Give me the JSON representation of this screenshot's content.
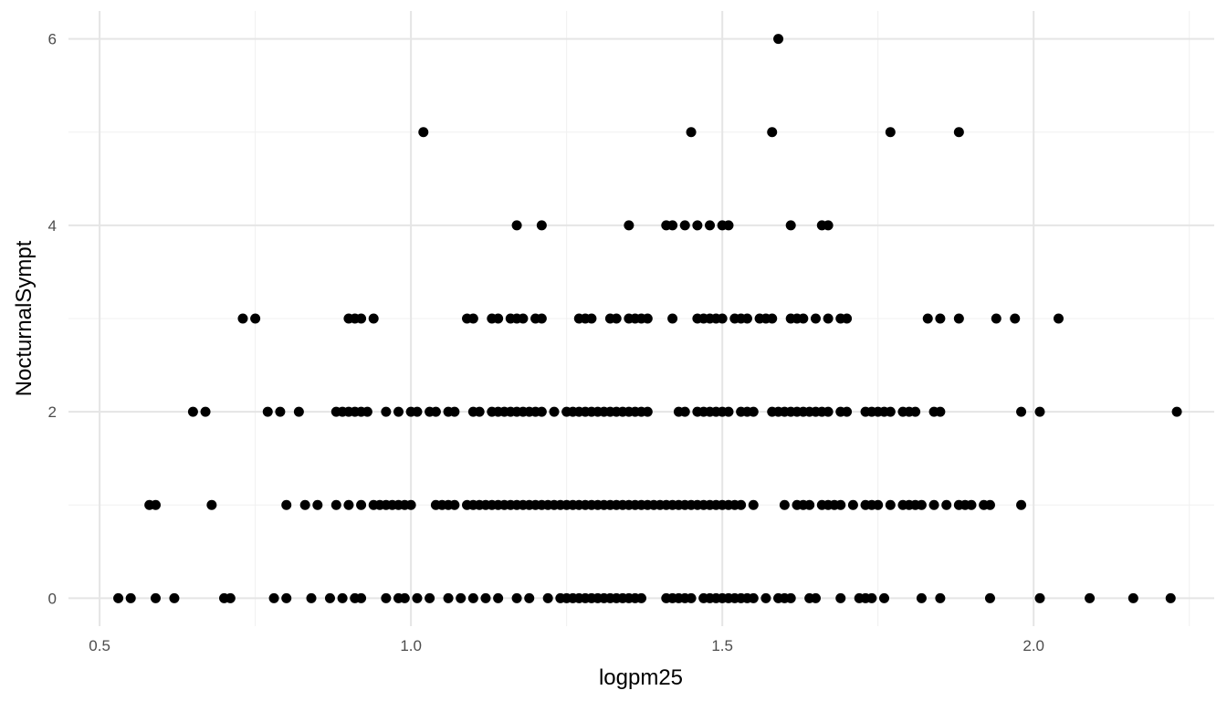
{
  "chart_data": {
    "type": "scatter",
    "title": "",
    "xlabel": "logpm25",
    "ylabel": "NocturnalSympt",
    "xlim": [
      0.45,
      2.29
    ],
    "ylim": [
      -0.3,
      6.3
    ],
    "x_ticks": [
      0.5,
      1.0,
      1.5,
      2.0
    ],
    "x_tick_labels": [
      "0.5",
      "1.0",
      "1.5",
      "2.0"
    ],
    "x_minor_ticks": [
      0.75,
      1.25,
      1.75,
      2.25
    ],
    "y_ticks": [
      0,
      2,
      4,
      6
    ],
    "y_tick_labels": [
      "0",
      "2",
      "4",
      "6"
    ],
    "y_minor_ticks": [
      1,
      3,
      5
    ],
    "grid": true,
    "point_color": "#000000",
    "grid_major_color": "#e5e5e5",
    "grid_minor_color": "#f0f0f0",
    "series": [
      {
        "points": [
          [
            1.59,
            6
          ],
          [
            1.02,
            5
          ],
          [
            1.45,
            5
          ],
          [
            1.58,
            5
          ],
          [
            1.77,
            5
          ],
          [
            1.88,
            5
          ],
          [
            1.17,
            4
          ],
          [
            1.21,
            4
          ],
          [
            1.35,
            4
          ],
          [
            1.41,
            4
          ],
          [
            1.42,
            4
          ],
          [
            1.44,
            4
          ],
          [
            1.46,
            4
          ],
          [
            1.48,
            4
          ],
          [
            1.5,
            4
          ],
          [
            1.51,
            4
          ],
          [
            1.61,
            4
          ],
          [
            1.66,
            4
          ],
          [
            1.67,
            4
          ],
          [
            0.73,
            3
          ],
          [
            0.75,
            3
          ],
          [
            0.9,
            3
          ],
          [
            0.91,
            3
          ],
          [
            0.92,
            3
          ],
          [
            0.94,
            3
          ],
          [
            1.09,
            3
          ],
          [
            1.1,
            3
          ],
          [
            1.13,
            3
          ],
          [
            1.14,
            3
          ],
          [
            1.16,
            3
          ],
          [
            1.17,
            3
          ],
          [
            1.18,
            3
          ],
          [
            1.2,
            3
          ],
          [
            1.21,
            3
          ],
          [
            1.27,
            3
          ],
          [
            1.28,
            3
          ],
          [
            1.29,
            3
          ],
          [
            1.32,
            3
          ],
          [
            1.33,
            3
          ],
          [
            1.35,
            3
          ],
          [
            1.36,
            3
          ],
          [
            1.37,
            3
          ],
          [
            1.38,
            3
          ],
          [
            1.42,
            3
          ],
          [
            1.46,
            3
          ],
          [
            1.47,
            3
          ],
          [
            1.48,
            3
          ],
          [
            1.49,
            3
          ],
          [
            1.5,
            3
          ],
          [
            1.52,
            3
          ],
          [
            1.53,
            3
          ],
          [
            1.54,
            3
          ],
          [
            1.56,
            3
          ],
          [
            1.57,
            3
          ],
          [
            1.58,
            3
          ],
          [
            1.61,
            3
          ],
          [
            1.62,
            3
          ],
          [
            1.63,
            3
          ],
          [
            1.65,
            3
          ],
          [
            1.67,
            3
          ],
          [
            1.69,
            3
          ],
          [
            1.7,
            3
          ],
          [
            1.83,
            3
          ],
          [
            1.85,
            3
          ],
          [
            1.88,
            3
          ],
          [
            1.94,
            3
          ],
          [
            1.97,
            3
          ],
          [
            2.04,
            3
          ],
          [
            0.65,
            2
          ],
          [
            0.67,
            2
          ],
          [
            0.77,
            2
          ],
          [
            0.79,
            2
          ],
          [
            0.82,
            2
          ],
          [
            0.88,
            2
          ],
          [
            0.89,
            2
          ],
          [
            0.9,
            2
          ],
          [
            0.91,
            2
          ],
          [
            0.92,
            2
          ],
          [
            0.93,
            2
          ],
          [
            0.96,
            2
          ],
          [
            0.98,
            2
          ],
          [
            1.0,
            2
          ],
          [
            1.01,
            2
          ],
          [
            1.03,
            2
          ],
          [
            1.04,
            2
          ],
          [
            1.06,
            2
          ],
          [
            1.07,
            2
          ],
          [
            1.1,
            2
          ],
          [
            1.11,
            2
          ],
          [
            1.13,
            2
          ],
          [
            1.14,
            2
          ],
          [
            1.15,
            2
          ],
          [
            1.16,
            2
          ],
          [
            1.17,
            2
          ],
          [
            1.18,
            2
          ],
          [
            1.19,
            2
          ],
          [
            1.2,
            2
          ],
          [
            1.21,
            2
          ],
          [
            1.23,
            2
          ],
          [
            1.25,
            2
          ],
          [
            1.26,
            2
          ],
          [
            1.27,
            2
          ],
          [
            1.28,
            2
          ],
          [
            1.29,
            2
          ],
          [
            1.3,
            2
          ],
          [
            1.31,
            2
          ],
          [
            1.32,
            2
          ],
          [
            1.33,
            2
          ],
          [
            1.34,
            2
          ],
          [
            1.35,
            2
          ],
          [
            1.36,
            2
          ],
          [
            1.37,
            2
          ],
          [
            1.38,
            2
          ],
          [
            1.43,
            2
          ],
          [
            1.44,
            2
          ],
          [
            1.46,
            2
          ],
          [
            1.47,
            2
          ],
          [
            1.48,
            2
          ],
          [
            1.49,
            2
          ],
          [
            1.5,
            2
          ],
          [
            1.51,
            2
          ],
          [
            1.53,
            2
          ],
          [
            1.54,
            2
          ],
          [
            1.55,
            2
          ],
          [
            1.58,
            2
          ],
          [
            1.59,
            2
          ],
          [
            1.6,
            2
          ],
          [
            1.61,
            2
          ],
          [
            1.62,
            2
          ],
          [
            1.63,
            2
          ],
          [
            1.64,
            2
          ],
          [
            1.65,
            2
          ],
          [
            1.66,
            2
          ],
          [
            1.67,
            2
          ],
          [
            1.69,
            2
          ],
          [
            1.7,
            2
          ],
          [
            1.73,
            2
          ],
          [
            1.74,
            2
          ],
          [
            1.75,
            2
          ],
          [
            1.76,
            2
          ],
          [
            1.77,
            2
          ],
          [
            1.79,
            2
          ],
          [
            1.8,
            2
          ],
          [
            1.81,
            2
          ],
          [
            1.84,
            2
          ],
          [
            1.85,
            2
          ],
          [
            1.98,
            2
          ],
          [
            2.01,
            2
          ],
          [
            2.23,
            2
          ],
          [
            0.58,
            1
          ],
          [
            0.59,
            1
          ],
          [
            0.68,
            1
          ],
          [
            0.8,
            1
          ],
          [
            0.83,
            1
          ],
          [
            0.85,
            1
          ],
          [
            0.88,
            1
          ],
          [
            0.9,
            1
          ],
          [
            0.92,
            1
          ],
          [
            0.94,
            1
          ],
          [
            0.95,
            1
          ],
          [
            0.96,
            1
          ],
          [
            0.97,
            1
          ],
          [
            0.98,
            1
          ],
          [
            0.99,
            1
          ],
          [
            1.0,
            1
          ],
          [
            1.04,
            1
          ],
          [
            1.05,
            1
          ],
          [
            1.06,
            1
          ],
          [
            1.07,
            1
          ],
          [
            1.09,
            1
          ],
          [
            1.1,
            1
          ],
          [
            1.11,
            1
          ],
          [
            1.12,
            1
          ],
          [
            1.13,
            1
          ],
          [
            1.14,
            1
          ],
          [
            1.15,
            1
          ],
          [
            1.16,
            1
          ],
          [
            1.17,
            1
          ],
          [
            1.18,
            1
          ],
          [
            1.19,
            1
          ],
          [
            1.2,
            1
          ],
          [
            1.21,
            1
          ],
          [
            1.22,
            1
          ],
          [
            1.23,
            1
          ],
          [
            1.24,
            1
          ],
          [
            1.25,
            1
          ],
          [
            1.26,
            1
          ],
          [
            1.27,
            1
          ],
          [
            1.28,
            1
          ],
          [
            1.29,
            1
          ],
          [
            1.3,
            1
          ],
          [
            1.31,
            1
          ],
          [
            1.32,
            1
          ],
          [
            1.33,
            1
          ],
          [
            1.34,
            1
          ],
          [
            1.35,
            1
          ],
          [
            1.36,
            1
          ],
          [
            1.37,
            1
          ],
          [
            1.38,
            1
          ],
          [
            1.39,
            1
          ],
          [
            1.4,
            1
          ],
          [
            1.41,
            1
          ],
          [
            1.42,
            1
          ],
          [
            1.43,
            1
          ],
          [
            1.44,
            1
          ],
          [
            1.45,
            1
          ],
          [
            1.46,
            1
          ],
          [
            1.47,
            1
          ],
          [
            1.48,
            1
          ],
          [
            1.49,
            1
          ],
          [
            1.5,
            1
          ],
          [
            1.51,
            1
          ],
          [
            1.52,
            1
          ],
          [
            1.53,
            1
          ],
          [
            1.55,
            1
          ],
          [
            1.6,
            1
          ],
          [
            1.62,
            1
          ],
          [
            1.63,
            1
          ],
          [
            1.64,
            1
          ],
          [
            1.66,
            1
          ],
          [
            1.67,
            1
          ],
          [
            1.68,
            1
          ],
          [
            1.69,
            1
          ],
          [
            1.71,
            1
          ],
          [
            1.73,
            1
          ],
          [
            1.74,
            1
          ],
          [
            1.75,
            1
          ],
          [
            1.77,
            1
          ],
          [
            1.79,
            1
          ],
          [
            1.8,
            1
          ],
          [
            1.81,
            1
          ],
          [
            1.82,
            1
          ],
          [
            1.84,
            1
          ],
          [
            1.86,
            1
          ],
          [
            1.88,
            1
          ],
          [
            1.89,
            1
          ],
          [
            1.9,
            1
          ],
          [
            1.92,
            1
          ],
          [
            1.93,
            1
          ],
          [
            1.98,
            1
          ],
          [
            0.53,
            0
          ],
          [
            0.55,
            0
          ],
          [
            0.59,
            0
          ],
          [
            0.62,
            0
          ],
          [
            0.7,
            0
          ],
          [
            0.71,
            0
          ],
          [
            0.78,
            0
          ],
          [
            0.8,
            0
          ],
          [
            0.84,
            0
          ],
          [
            0.87,
            0
          ],
          [
            0.89,
            0
          ],
          [
            0.91,
            0
          ],
          [
            0.92,
            0
          ],
          [
            0.96,
            0
          ],
          [
            0.98,
            0
          ],
          [
            0.99,
            0
          ],
          [
            1.01,
            0
          ],
          [
            1.03,
            0
          ],
          [
            1.06,
            0
          ],
          [
            1.08,
            0
          ],
          [
            1.1,
            0
          ],
          [
            1.12,
            0
          ],
          [
            1.14,
            0
          ],
          [
            1.17,
            0
          ],
          [
            1.19,
            0
          ],
          [
            1.22,
            0
          ],
          [
            1.24,
            0
          ],
          [
            1.25,
            0
          ],
          [
            1.26,
            0
          ],
          [
            1.27,
            0
          ],
          [
            1.28,
            0
          ],
          [
            1.29,
            0
          ],
          [
            1.3,
            0
          ],
          [
            1.31,
            0
          ],
          [
            1.32,
            0
          ],
          [
            1.33,
            0
          ],
          [
            1.34,
            0
          ],
          [
            1.35,
            0
          ],
          [
            1.36,
            0
          ],
          [
            1.37,
            0
          ],
          [
            1.41,
            0
          ],
          [
            1.42,
            0
          ],
          [
            1.43,
            0
          ],
          [
            1.44,
            0
          ],
          [
            1.45,
            0
          ],
          [
            1.47,
            0
          ],
          [
            1.48,
            0
          ],
          [
            1.49,
            0
          ],
          [
            1.5,
            0
          ],
          [
            1.51,
            0
          ],
          [
            1.52,
            0
          ],
          [
            1.53,
            0
          ],
          [
            1.54,
            0
          ],
          [
            1.55,
            0
          ],
          [
            1.57,
            0
          ],
          [
            1.59,
            0
          ],
          [
            1.6,
            0
          ],
          [
            1.61,
            0
          ],
          [
            1.64,
            0
          ],
          [
            1.65,
            0
          ],
          [
            1.69,
            0
          ],
          [
            1.72,
            0
          ],
          [
            1.73,
            0
          ],
          [
            1.74,
            0
          ],
          [
            1.76,
            0
          ],
          [
            1.82,
            0
          ],
          [
            1.85,
            0
          ],
          [
            1.93,
            0
          ],
          [
            2.01,
            0
          ],
          [
            2.09,
            0
          ],
          [
            2.16,
            0
          ],
          [
            2.22,
            0
          ]
        ]
      }
    ]
  }
}
